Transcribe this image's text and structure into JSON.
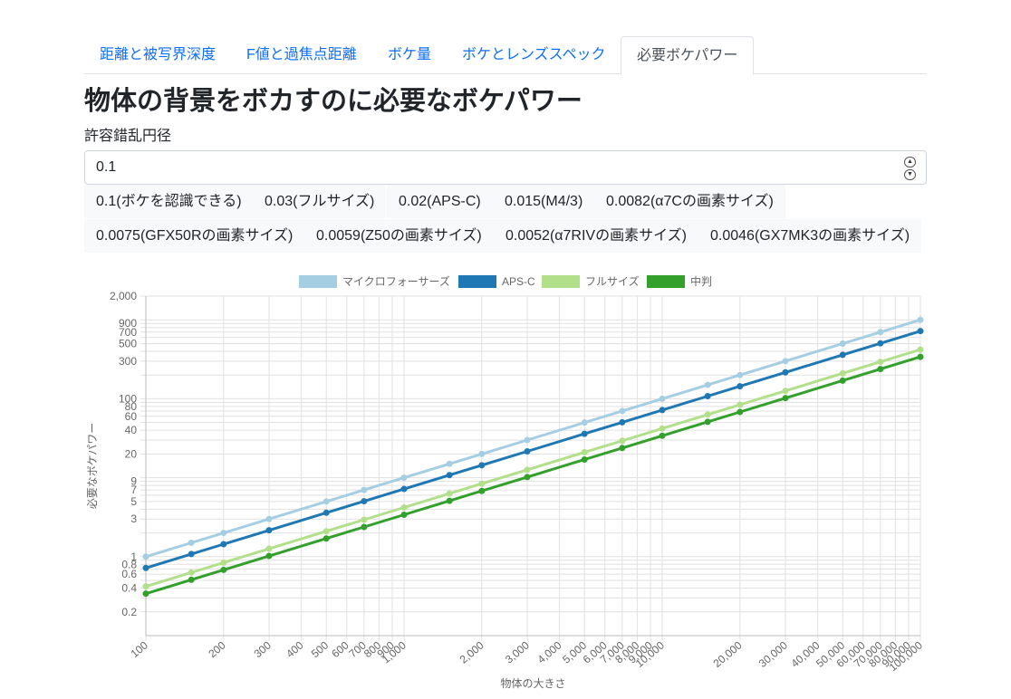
{
  "tabs": [
    {
      "label": "距離と被写界深度",
      "active": false
    },
    {
      "label": "F値と過焦点距離",
      "active": false
    },
    {
      "label": "ボケ量",
      "active": false
    },
    {
      "label": "ボケとレンズスペック",
      "active": false
    },
    {
      "label": "必要ボケパワー",
      "active": true
    }
  ],
  "page": {
    "title": "物体の背景をボカすのに必要なボケパワー",
    "coc_label": "許容錯乱円径",
    "coc_value": "0.1"
  },
  "presets": [
    "0.1(ボケを認識できる)",
    "0.03(フルサイズ)",
    "0.02(APS-C)",
    "0.015(M4/3)",
    "0.0082(α7Cの画素サイズ)",
    "0.0075(GFX50Rの画素サイズ)",
    "0.0059(Z50の画素サイズ)",
    "0.0052(α7RIVの画素サイズ)",
    "0.0046(GX7MK3の画素サイズ)"
  ],
  "chart_data": {
    "type": "line",
    "xlabel": "物体の大きさ",
    "ylabel": "必要なボケパワー",
    "x_scale": "log",
    "y_scale": "log",
    "xlim": [
      100,
      100000
    ],
    "ylim": [
      0.1,
      2000
    ],
    "legend_position": "top",
    "grid": true,
    "x_ticks": [
      {
        "v": 100,
        "l": "100"
      },
      {
        "v": 200,
        "l": "200"
      },
      {
        "v": 300,
        "l": "300"
      },
      {
        "v": 400,
        "l": "400"
      },
      {
        "v": 500,
        "l": "500"
      },
      {
        "v": 600,
        "l": "600"
      },
      {
        "v": 700,
        "l": "700"
      },
      {
        "v": 800,
        "l": "800"
      },
      {
        "v": 900,
        "l": "900"
      },
      {
        "v": 1000,
        "l": "1,000"
      },
      {
        "v": 2000,
        "l": "2,000"
      },
      {
        "v": 3000,
        "l": "3,000"
      },
      {
        "v": 4000,
        "l": "4,000"
      },
      {
        "v": 5000,
        "l": "5,000"
      },
      {
        "v": 6000,
        "l": "6,000"
      },
      {
        "v": 7000,
        "l": "7,000"
      },
      {
        "v": 8000,
        "l": "8,000"
      },
      {
        "v": 9000,
        "l": "9,000"
      },
      {
        "v": 10000,
        "l": "10,000"
      },
      {
        "v": 20000,
        "l": "20,000"
      },
      {
        "v": 30000,
        "l": "30,000"
      },
      {
        "v": 40000,
        "l": "40,000"
      },
      {
        "v": 50000,
        "l": "50,000"
      },
      {
        "v": 60000,
        "l": "60,000"
      },
      {
        "v": 70000,
        "l": "70,000"
      },
      {
        "v": 80000,
        "l": "80,000"
      },
      {
        "v": 90000,
        "l": "90,000"
      },
      {
        "v": 100000,
        "l": "100,000"
      }
    ],
    "y_ticks": [
      {
        "v": 0.2,
        "l": "0.2"
      },
      {
        "v": 0.4,
        "l": "0.4"
      },
      {
        "v": 0.6,
        "l": "0.6"
      },
      {
        "v": 0.8,
        "l": "0.8"
      },
      {
        "v": 1,
        "l": "1"
      },
      {
        "v": 3,
        "l": "3"
      },
      {
        "v": 5,
        "l": "5"
      },
      {
        "v": 7,
        "l": "7"
      },
      {
        "v": 9,
        "l": "9"
      },
      {
        "v": 20,
        "l": "20"
      },
      {
        "v": 40,
        "l": "40"
      },
      {
        "v": 60,
        "l": "60"
      },
      {
        "v": 80,
        "l": "80"
      },
      {
        "v": 100,
        "l": "100"
      },
      {
        "v": 300,
        "l": "300"
      },
      {
        "v": 500,
        "l": "500"
      },
      {
        "v": 700,
        "l": "700"
      },
      {
        "v": 900,
        "l": "900"
      },
      {
        "v": 2000,
        "l": "2,000"
      }
    ],
    "y_gridlines": [
      0.2,
      0.3,
      0.4,
      0.5,
      0.6,
      0.7,
      0.8,
      0.9,
      1,
      2,
      3,
      4,
      5,
      6,
      7,
      8,
      9,
      10,
      20,
      30,
      40,
      50,
      60,
      70,
      80,
      90,
      100,
      200,
      300,
      400,
      500,
      600,
      700,
      800,
      900,
      1000,
      2000
    ],
    "x": [
      100,
      150,
      200,
      300,
      500,
      700,
      1000,
      1500,
      2000,
      3000,
      5000,
      7000,
      10000,
      15000,
      20000,
      30000,
      50000,
      70000,
      100000
    ],
    "series": [
      {
        "name": "マイクロフォーサーズ",
        "color": "#a6cee3",
        "values": [
          1.0,
          1.5,
          2.0,
          3.0,
          5.0,
          7.0,
          10,
          15,
          20,
          30,
          50,
          70,
          100,
          150,
          200,
          300,
          500,
          700,
          1000
        ]
      },
      {
        "name": "APS-C",
        "color": "#1f78b4",
        "values": [
          0.72,
          1.08,
          1.44,
          2.16,
          3.6,
          5.04,
          7.2,
          10.8,
          14.4,
          21.6,
          36,
          50.4,
          72,
          108,
          144,
          216,
          360,
          504,
          720
        ]
      },
      {
        "name": "フルサイズ",
        "color": "#b2df8a",
        "values": [
          0.42,
          0.63,
          0.84,
          1.26,
          2.1,
          2.94,
          4.2,
          6.3,
          8.4,
          12.6,
          21,
          29.4,
          42,
          63,
          84,
          126,
          210,
          294,
          420
        ]
      },
      {
        "name": "中判",
        "color": "#33a02c",
        "values": [
          0.34,
          0.51,
          0.68,
          1.02,
          1.7,
          2.38,
          3.4,
          5.1,
          6.8,
          10.2,
          17,
          23.8,
          34,
          51,
          68,
          102,
          170,
          238,
          340
        ]
      }
    ]
  }
}
